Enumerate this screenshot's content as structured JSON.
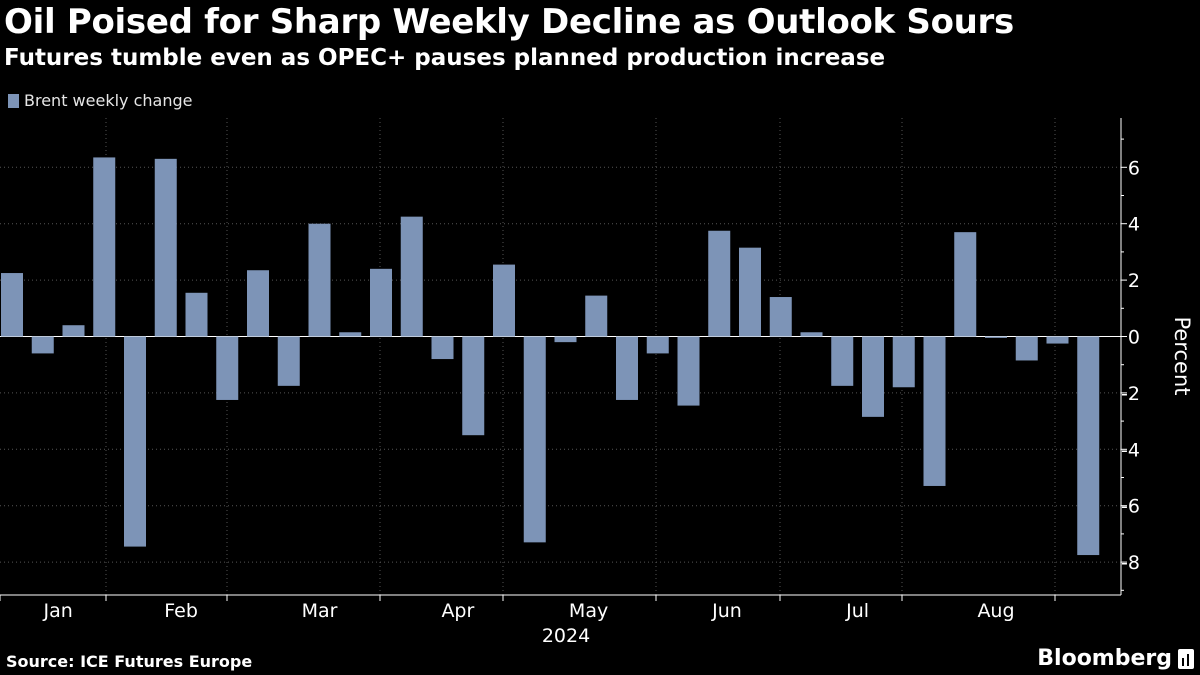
{
  "title": "Oil Poised for Sharp Weekly Decline as Outlook Sours",
  "subtitle": "Futures tumble even as OPEC+ pauses planned production increase",
  "source": "Source: ICE Futures Europe",
  "brand": "Bloomberg",
  "colors": {
    "bar": "#7d94b7",
    "background": "#000000",
    "grid": "#555555",
    "text": "#ffffff"
  },
  "chart_data": {
    "type": "bar",
    "title": "Oil Poised for Sharp Weekly Decline as Outlook Sours",
    "ylabel": "Percent",
    "xlabel": "2024",
    "ylim": [
      -9,
      7.8
    ],
    "yticks": [
      6,
      4,
      2,
      0,
      -2,
      -4,
      -6,
      -8
    ],
    "series": [
      {
        "name": "Brent weekly change",
        "values": [
          2.25,
          -0.6,
          0.4,
          6.35,
          -7.45,
          6.3,
          1.55,
          -2.25,
          2.35,
          -1.75,
          4.0,
          0.15,
          2.4,
          4.25,
          -0.8,
          -3.5,
          2.55,
          -7.3,
          -0.2,
          1.45,
          -2.25,
          -0.6,
          -2.45,
          3.75,
          3.15,
          1.4,
          0.15,
          -1.75,
          -2.85,
          -1.8,
          -5.3,
          3.7,
          -0.05,
          -0.85,
          -0.25,
          -7.75
        ]
      }
    ],
    "months": [
      {
        "label": "Jan",
        "start_week": 0,
        "end_week": 3
      },
      {
        "label": "Feb",
        "start_week": 3.5,
        "end_week": 7.5
      },
      {
        "label": "Mar",
        "start_week": 7.5,
        "end_week": 12.5
      },
      {
        "label": "Apr",
        "start_week": 12.5,
        "end_week": 16.5
      },
      {
        "label": "May",
        "start_week": 16.5,
        "end_week": 21
      },
      {
        "label": "Jun",
        "start_week": 21,
        "end_week": 25.5
      },
      {
        "label": "Jul",
        "start_week": 25.5,
        "end_week": 29.5
      },
      {
        "label": "Aug",
        "start_week": 29.5,
        "end_week": 34.5
      }
    ],
    "year_label": "2024",
    "legend": "Brent weekly change",
    "legend_position": "top-left"
  }
}
